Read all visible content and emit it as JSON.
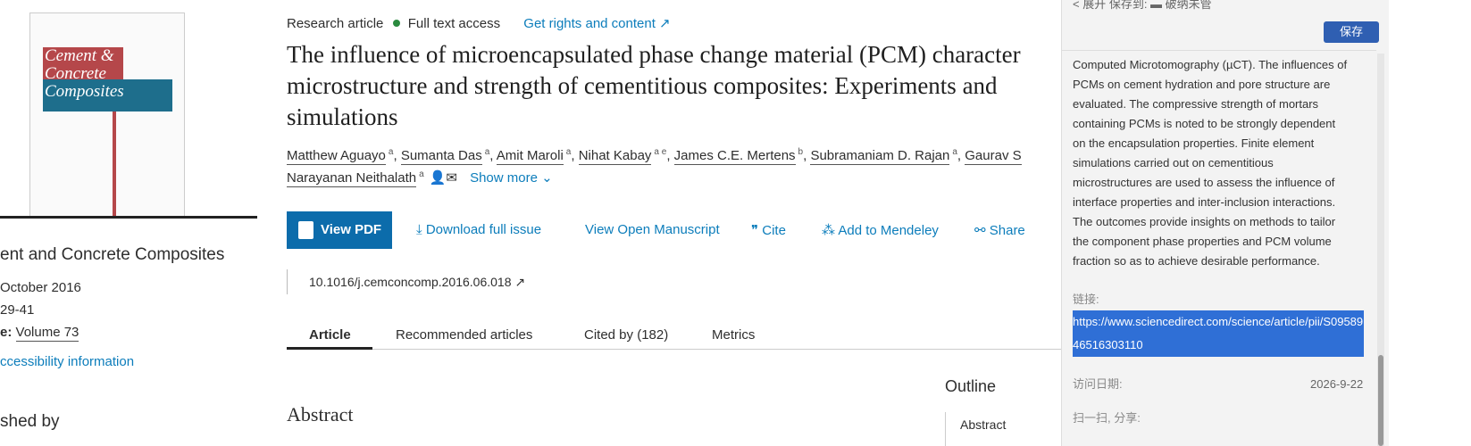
{
  "sidebar": {
    "cover_title": "Cement &\nConcrete\nComposites",
    "journal": "ent and Concrete Composites",
    "date": "October 2016",
    "pages": "29-41",
    "volume_label": "e:",
    "volume": "Volume 73",
    "accessibility": "ccessibility information",
    "published_by": "shed by"
  },
  "header": {
    "article_type": "Research article",
    "access": "Full text access",
    "rights": "Get rights and content ↗",
    "title": [
      "The influence of microencapsulated phase change material (PCM) character",
      "microstructure and strength of cementitious composites: Experiments and",
      "simulations"
    ],
    "authors": [
      {
        "name": "Matthew Aguayo",
        "sup": "a"
      },
      {
        "name": "Sumanta Das",
        "sup": "a"
      },
      {
        "name": "Amit Maroli",
        "sup": "a"
      },
      {
        "name": "Nihat Kabay",
        "sup": "a e"
      },
      {
        "name": "James C.E. Mertens",
        "sup": "b"
      },
      {
        "name": "Subramaniam D. Rajan",
        "sup": "a"
      },
      {
        "name": "Gaurav S",
        "sup": ""
      },
      {
        "name": "Narayanan Neithalath",
        "sup": "a"
      }
    ],
    "show_more": "Show more"
  },
  "actions": [
    "View PDF",
    "Download full issue",
    "View Open Manuscript",
    "Cite",
    "Add to Mendeley",
    "Share"
  ],
  "doi": "10.1016/j.cemconcomp.2016.06.018",
  "tabs": [
    "Article",
    "Recommended articles",
    "Cited by (182)",
    "Metrics"
  ],
  "abstract_heading": "Abstract",
  "outline": {
    "heading": "Outline",
    "items": [
      "Abstract"
    ]
  },
  "panel": {
    "toolbar": "< 展开   保存到:  ▬ 破纳未管",
    "save": "保存",
    "abstract": [
      "Computed Microtomography (µCT). The influences of",
      "PCMs on cement hydration and pore structure are",
      "evaluated. The compressive strength of mortars",
      "containing PCMs is noted to be strongly dependent",
      "on the encapsulation properties. Finite element",
      "simulations carried out on cementitious",
      "microstructures are used to assess the influence of",
      "interface properties and inter-inclusion interactions.",
      "The outcomes provide insights on methods to tailor",
      "the component phase properties and PCM volume",
      "fraction so as to achieve desirable performance."
    ],
    "link_label": "链接:",
    "url": "https://www.sciencedirect.com/science/article/pii/S0958946516303110",
    "date_label": "访问日期:",
    "date": "2026-9-22",
    "share_label": "扫一扫, 分享:"
  }
}
